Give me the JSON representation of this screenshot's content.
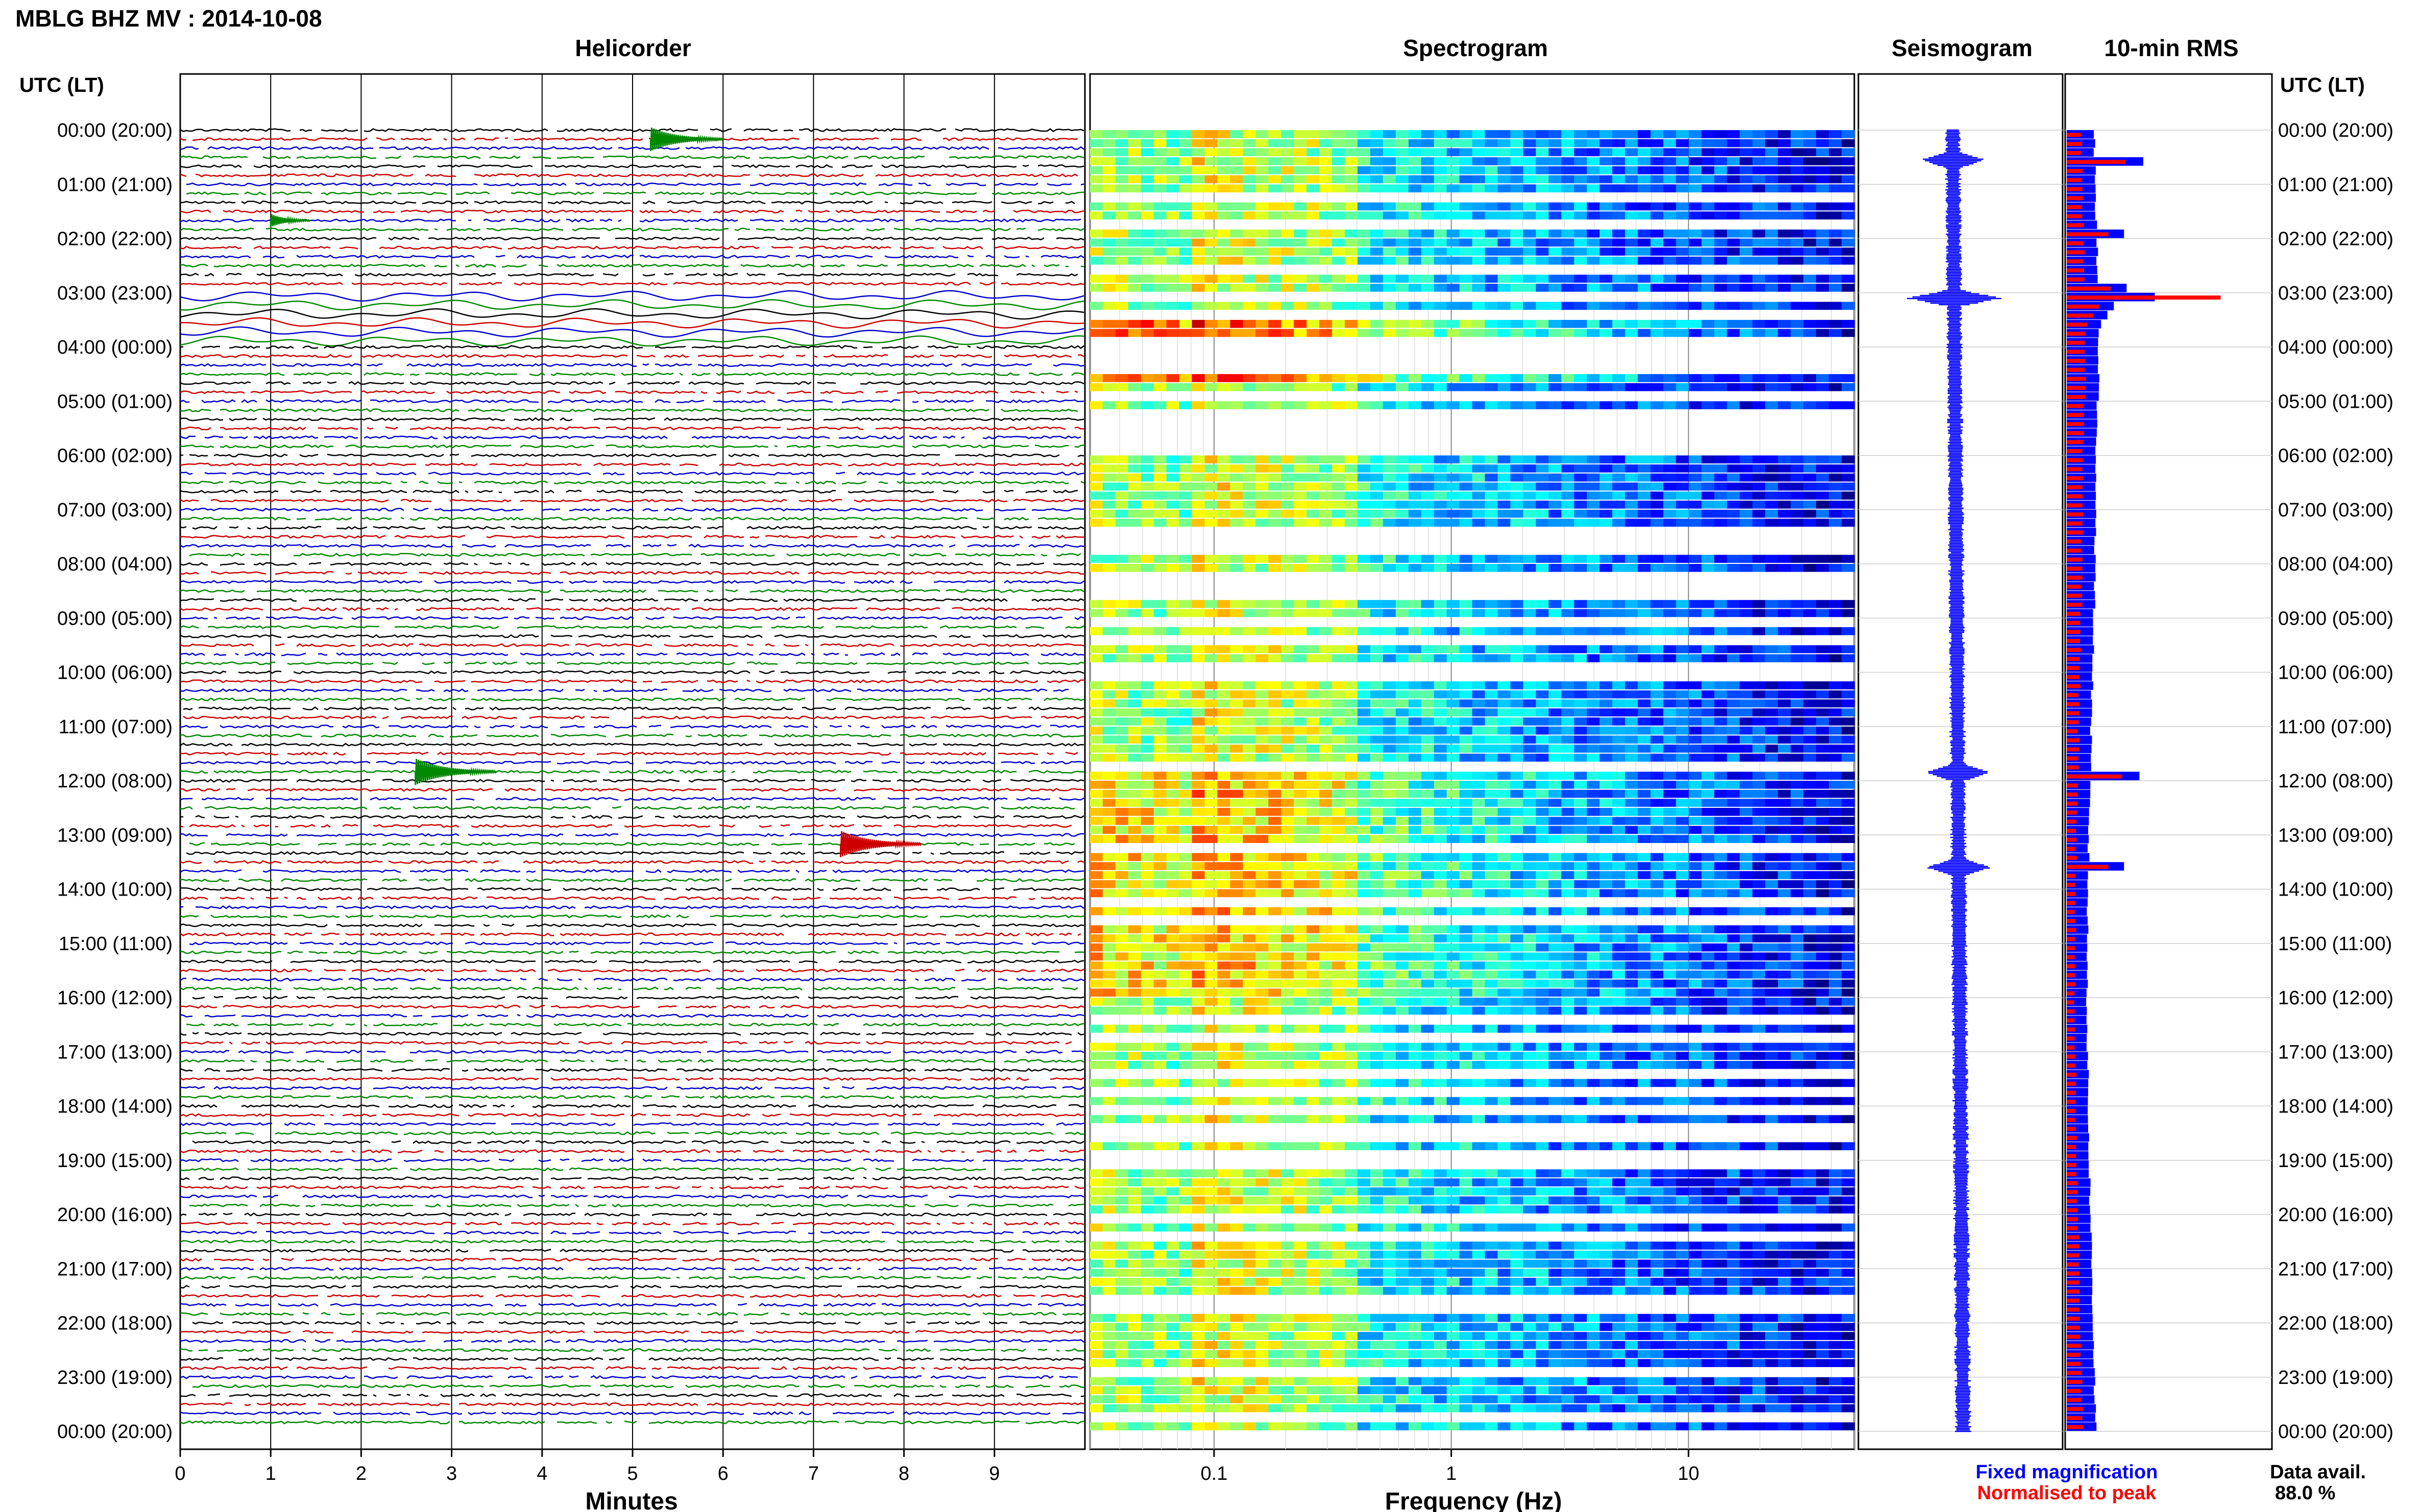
{
  "header": {
    "title": "MBLG BHZ MV : 2014-10-08",
    "panel_titles": [
      "Helicorder",
      "Spectrogram",
      "Seismogram",
      "10-min RMS"
    ],
    "utc_label": "UTC (LT)",
    "utc_label_right": "UTC (LT)"
  },
  "time_labels": [
    "00:00 (20:00)",
    "01:00 (21:00)",
    "02:00 (22:00)",
    "03:00 (23:00)",
    "04:00 (00:00)",
    "05:00 (01:00)",
    "06:00 (02:00)",
    "07:00 (03:00)",
    "08:00 (04:00)",
    "09:00 (05:00)",
    "10:00 (06:00)",
    "11:00 (07:00)",
    "12:00 (08:00)",
    "13:00 (09:00)",
    "14:00 (10:00)",
    "15:00 (11:00)",
    "16:00 (12:00)",
    "17:00 (13:00)",
    "18:00 (14:00)",
    "19:00 (15:00)",
    "20:00 (16:00)",
    "21:00 (17:00)",
    "22:00 (18:00)",
    "23:00 (19:00)",
    "00:00 (20:00)"
  ],
  "footer": {
    "helicorder_xlabel": "Minutes",
    "spectrogram_xlabel": "Frequency (Hz)",
    "legend_fixed": "Fixed magnification",
    "legend_normalised": "Normalised to peak",
    "data_avail_label": "Data avail.",
    "data_avail_value": "88.0 %"
  },
  "colors": {
    "trace_colors": [
      "#000000",
      "#cc0000",
      "#0000cc",
      "#008800"
    ],
    "fixed": "#0000ff",
    "normalised": "#ff0000"
  },
  "chart_data": [
    {
      "type": "line",
      "name": "helicorder",
      "xlabel": "Minutes",
      "x_ticks": [
        0,
        1,
        2,
        3,
        4,
        5,
        6,
        7,
        8,
        9
      ],
      "xlim": [
        0,
        10
      ],
      "hours": 24,
      "lines_per_hour": 6,
      "events": [
        {
          "hour": 0,
          "line": 1,
          "minute": 5.2,
          "amp": 0.9,
          "color": "#008800"
        },
        {
          "hour": 1,
          "line": 4,
          "minute": 1.0,
          "amp": 0.5,
          "color": "#008800"
        },
        {
          "hour": 11,
          "line": 5,
          "minute": 2.6,
          "amp": 1.0,
          "color": "#008800"
        },
        {
          "hour": 13,
          "line": 1,
          "minute": 7.3,
          "amp": 1.0,
          "color": "#cc0000"
        }
      ],
      "noisy_hour": 3
    },
    {
      "type": "heatmap",
      "name": "spectrogram",
      "xlabel": "Frequency (Hz)",
      "x_scale": "log",
      "x_ticks": [
        0.1,
        1,
        10
      ],
      "xlim": [
        0.03,
        50
      ],
      "hours": 24
    },
    {
      "type": "line",
      "name": "seismogram",
      "hours": 24,
      "spikes_hours": [
        0.55,
        3.1,
        11.85,
        13.6
      ]
    },
    {
      "type": "bar",
      "name": "10-min RMS",
      "series": [
        {
          "name": "Fixed magnification"
        },
        {
          "name": "Normalised to peak"
        }
      ],
      "peaks": [
        {
          "hour": 0.55,
          "value": 0.85
        },
        {
          "hour": 1.9,
          "value": 0.6
        },
        {
          "hour": 3.0,
          "value": 1.0
        },
        {
          "hour": 11.9,
          "value": 0.8
        },
        {
          "hour": 13.55,
          "value": 0.6
        }
      ],
      "baseline": 0.3
    }
  ]
}
